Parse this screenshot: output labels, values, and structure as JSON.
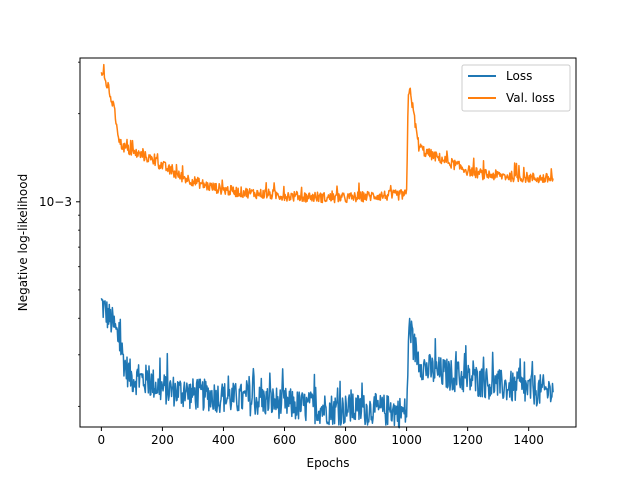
{
  "chart_data": {
    "type": "line",
    "title": "",
    "xlabel": "Epochs",
    "ylabel": "Negative log-likelihood",
    "xlim": [
      -70,
      1555
    ],
    "ylim": [
      0.00017,
      0.0031
    ],
    "yscale": "log",
    "xticks": [
      0,
      200,
      400,
      600,
      800,
      1000,
      1200,
      1400
    ],
    "xtick_labels": [
      "0",
      "200",
      "400",
      "600",
      "800",
      "1000",
      "1200",
      "1400"
    ],
    "yticks": [
      0.001
    ],
    "ytick_labels": [
      "10−3"
    ],
    "grid": false,
    "legend_position": "top-right",
    "series": [
      {
        "name": "Loss",
        "color": "#1f77b4",
        "x": [
          0,
          20,
          40,
          60,
          80,
          100,
          150,
          200,
          250,
          300,
          350,
          400,
          450,
          500,
          550,
          600,
          650,
          700,
          750,
          800,
          850,
          900,
          950,
          1000,
          1005,
          1010,
          1020,
          1040,
          1060,
          1100,
          1150,
          1200,
          1250,
          1300,
          1350,
          1400,
          1450,
          1480
        ],
        "y": [
          0.00045,
          0.00041,
          0.00038,
          0.00033,
          0.00027,
          0.00025,
          0.000245,
          0.00023,
          0.000225,
          0.00022,
          0.000218,
          0.000215,
          0.000212,
          0.00021,
          0.000208,
          0.000205,
          0.0002,
          0.000198,
          0.000196,
          0.000195,
          0.000195,
          0.000195,
          0.000193,
          0.00019,
          0.00029,
          0.00039,
          0.00033,
          0.00029,
          0.00027,
          0.000262,
          0.000255,
          0.000248,
          0.000242,
          0.000236,
          0.000232,
          0.000228,
          0.000226,
          0.000225
        ]
      },
      {
        "name": "Val. loss",
        "color": "#ff7f0e",
        "x": [
          0,
          10,
          20,
          30,
          40,
          50,
          60,
          70,
          80,
          100,
          150,
          200,
          250,
          300,
          350,
          400,
          450,
          500,
          550,
          600,
          650,
          700,
          750,
          800,
          850,
          900,
          950,
          1000,
          1005,
          1010,
          1020,
          1030,
          1040,
          1060,
          1100,
          1150,
          1200,
          1250,
          1300,
          1350,
          1400,
          1450,
          1480
        ],
        "y": [
          0.0028,
          0.0026,
          0.0025,
          0.0023,
          0.0021,
          0.00185,
          0.0016,
          0.00155,
          0.00152,
          0.00148,
          0.00142,
          0.00133,
          0.00123,
          0.00118,
          0.00113,
          0.0011,
          0.00108,
          0.00107,
          0.00106,
          0.00105,
          0.00104,
          0.00104,
          0.00103,
          0.00103,
          0.00104,
          0.00105,
          0.00105,
          0.00106,
          0.0022,
          0.0025,
          0.0021,
          0.0018,
          0.00155,
          0.00148,
          0.00142,
          0.00135,
          0.00128,
          0.00124,
          0.00123,
          0.00122,
          0.00121,
          0.0012,
          0.0012
        ]
      }
    ]
  }
}
